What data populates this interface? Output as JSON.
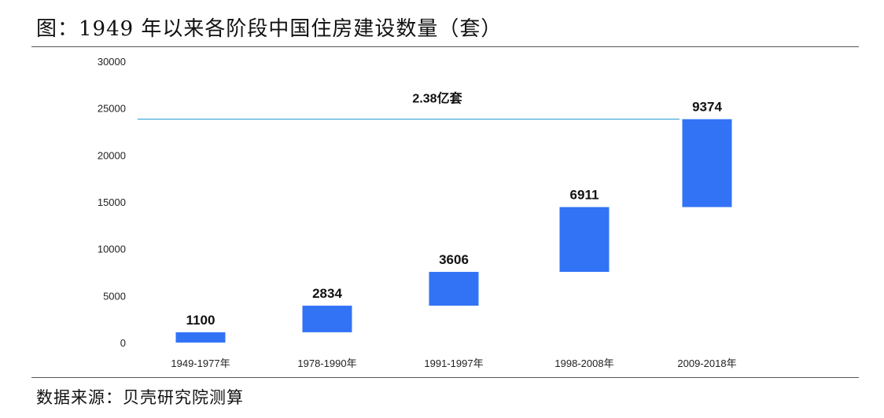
{
  "title": "图：1949 年以来各阶段中国住房建设数量（套）",
  "source": "数据来源：贝壳研究院测算",
  "colors": {
    "bar": "#3273F5",
    "total_line": "#2E9FD8",
    "text": "#111111"
  },
  "chart_data": {
    "type": "bar",
    "subtype": "waterfall",
    "categories": [
      "1949-1977年",
      "1978-1990年",
      "1991-1997年",
      "1998-2008年",
      "2009-2018年"
    ],
    "values": [
      1100,
      2834,
      3606,
      6911,
      9374
    ],
    "value_labels": [
      "1100",
      "2834",
      "3606",
      "6911",
      "9374"
    ],
    "ylim": [
      0,
      30000
    ],
    "yticks": [
      0,
      5000,
      10000,
      15000,
      20000,
      25000,
      30000
    ],
    "ytick_labels": [
      "0",
      "5000",
      "10000",
      "15000",
      "20000",
      "25000",
      "30000"
    ],
    "total_line": {
      "value": 23825,
      "label": "2.38亿套"
    },
    "grid": false,
    "legend": "none"
  }
}
